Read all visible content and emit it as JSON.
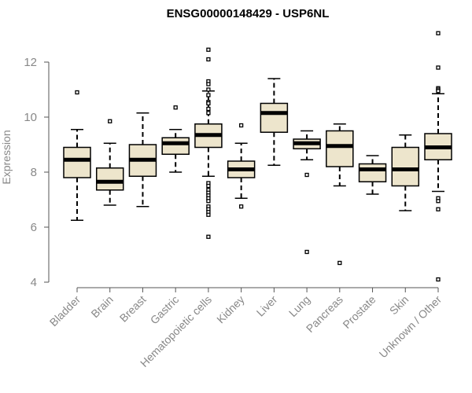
{
  "colors": {
    "box_fill": "#ede5cc",
    "box_stroke": "#000000",
    "axis": "#555555",
    "label": "#888888"
  },
  "chart_data": {
    "type": "boxplot",
    "title": "ENSG00000148429 - USP6NL",
    "xlabel": "",
    "ylabel": "Expression",
    "ylim": [
      4,
      13
    ],
    "yticks": [
      4,
      6,
      8,
      10,
      12
    ],
    "categories": [
      "Bladder",
      "Brain",
      "Breast",
      "Gastric",
      "Hematopoietic cells",
      "Kidney",
      "Liver",
      "Lung",
      "Pancreas",
      "Prostate",
      "Skin",
      "Unknown / Other"
    ],
    "boxes": [
      {
        "name": "Bladder",
        "whislo": 6.25,
        "q1": 7.8,
        "med": 8.45,
        "q3": 8.9,
        "whishi": 9.55,
        "fliers": [
          10.9
        ]
      },
      {
        "name": "Brain",
        "whislo": 6.8,
        "q1": 7.35,
        "med": 7.65,
        "q3": 8.15,
        "whishi": 9.05,
        "fliers": [
          9.85
        ]
      },
      {
        "name": "Breast",
        "whislo": 6.75,
        "q1": 7.85,
        "med": 8.45,
        "q3": 9.0,
        "whishi": 10.15,
        "fliers": []
      },
      {
        "name": "Gastric",
        "whislo": 8.0,
        "q1": 8.65,
        "med": 9.05,
        "q3": 9.25,
        "whishi": 9.55,
        "fliers": [
          10.35
        ]
      },
      {
        "name": "Hematopoietic cells",
        "whislo": 7.85,
        "q1": 8.9,
        "med": 9.35,
        "q3": 9.75,
        "whishi": 10.95,
        "fliers": [
          12.45,
          12.1,
          11.3,
          11.2,
          11.0,
          10.8,
          10.55,
          10.5,
          10.3,
          10.15,
          7.6,
          7.5,
          7.35,
          7.25,
          7.15,
          7.05,
          6.95,
          6.75,
          6.65,
          6.55,
          6.45,
          5.65
        ]
      },
      {
        "name": "Kidney",
        "whislo": 7.05,
        "q1": 7.8,
        "med": 8.1,
        "q3": 8.4,
        "whishi": 9.05,
        "fliers": [
          9.7,
          6.75
        ]
      },
      {
        "name": "Liver",
        "whislo": 8.25,
        "q1": 9.45,
        "med": 10.15,
        "q3": 10.5,
        "whishi": 11.4,
        "fliers": []
      },
      {
        "name": "Lung",
        "whislo": 8.45,
        "q1": 8.85,
        "med": 9.05,
        "q3": 9.2,
        "whishi": 9.5,
        "fliers": [
          7.9,
          5.1
        ]
      },
      {
        "name": "Pancreas",
        "whislo": 7.5,
        "q1": 8.2,
        "med": 8.95,
        "q3": 9.5,
        "whishi": 9.75,
        "fliers": [
          4.7
        ]
      },
      {
        "name": "Prostate",
        "whislo": 7.2,
        "q1": 7.65,
        "med": 8.1,
        "q3": 8.3,
        "whishi": 8.6,
        "fliers": []
      },
      {
        "name": "Skin",
        "whislo": 6.6,
        "q1": 7.5,
        "med": 8.1,
        "q3": 8.9,
        "whishi": 9.35,
        "fliers": []
      },
      {
        "name": "Unknown / Other",
        "whislo": 7.3,
        "q1": 8.45,
        "med": 8.9,
        "q3": 9.4,
        "whishi": 10.85,
        "fliers": [
          13.05,
          11.8,
          11.05,
          11.0,
          10.95,
          7.05,
          6.95,
          6.65,
          4.1
        ]
      }
    ]
  }
}
